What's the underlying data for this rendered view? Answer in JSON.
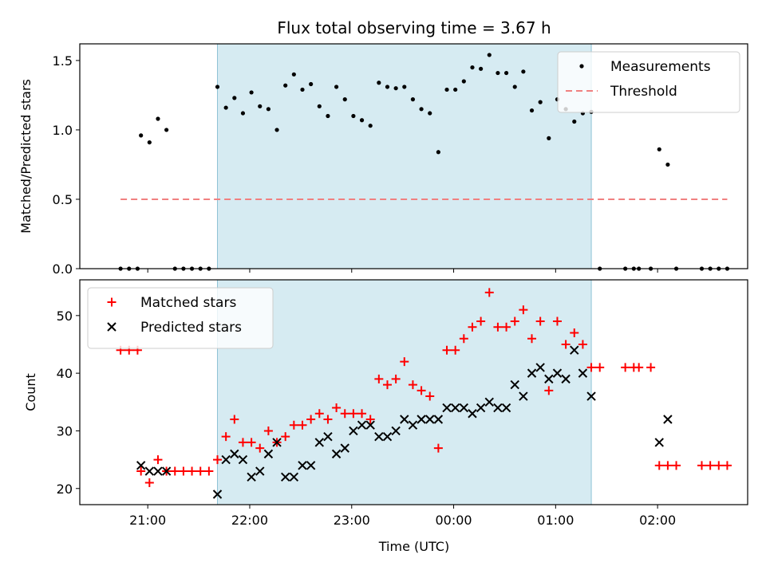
{
  "chart_data": {
    "type": "scatter",
    "title": "Flux total observing time = 3.67 h",
    "xlabel": "Time (UTC)",
    "x_ticks": [
      "21:00",
      "22:00",
      "23:00",
      "00:00",
      "01:00",
      "02:00"
    ],
    "shaded_region": {
      "start": "21:41",
      "end": "01:21",
      "color": "#add8e6"
    },
    "panels": [
      {
        "ylabel": "Matched/Predicted stars",
        "ylim": [
          0,
          1.62
        ],
        "y_ticks": [
          "0.0",
          "0.5",
          "1.0",
          "1.5"
        ],
        "legend": {
          "position": "top-right",
          "entries": [
            "Measurements",
            "Threshold"
          ]
        },
        "series": [
          {
            "name": "Measurements",
            "marker": "dot",
            "color": "#000000",
            "points": [
              [
                "20:44",
                0
              ],
              [
                "20:49",
                0
              ],
              [
                "20:54",
                0
              ],
              [
                "20:56",
                0.96
              ],
              [
                "21:01",
                0.91
              ],
              [
                "21:06",
                1.08
              ],
              [
                "21:11",
                1
              ],
              [
                "21:16",
                0
              ],
              [
                "21:21",
                0
              ],
              [
                "21:26",
                0
              ],
              [
                "21:31",
                0
              ],
              [
                "21:36",
                0
              ],
              [
                "21:41",
                1.31
              ],
              [
                "21:46",
                1.16
              ],
              [
                "21:51",
                1.23
              ],
              [
                "21:56",
                1.12
              ],
              [
                "22:01",
                1.27
              ],
              [
                "22:06",
                1.17
              ],
              [
                "22:11",
                1.15
              ],
              [
                "22:16",
                1
              ],
              [
                "22:21",
                1.32
              ],
              [
                "22:26",
                1.4
              ],
              [
                "22:31",
                1.29
              ],
              [
                "22:36",
                1.33
              ],
              [
                "22:41",
                1.17
              ],
              [
                "22:46",
                1.1
              ],
              [
                "22:51",
                1.31
              ],
              [
                "22:56",
                1.22
              ],
              [
                "23:01",
                1.1
              ],
              [
                "23:06",
                1.07
              ],
              [
                "23:11",
                1.03
              ],
              [
                "23:16",
                1.34
              ],
              [
                "23:21",
                1.31
              ],
              [
                "23:26",
                1.3
              ],
              [
                "23:31",
                1.31
              ],
              [
                "23:36",
                1.22
              ],
              [
                "23:41",
                1.15
              ],
              [
                "23:46",
                1.12
              ],
              [
                "23:51",
                0.84
              ],
              [
                "23:56",
                1.29
              ],
              [
                "00:01",
                1.29
              ],
              [
                "00:06",
                1.35
              ],
              [
                "00:11",
                1.45
              ],
              [
                "00:16",
                1.44
              ],
              [
                "00:21",
                1.54
              ],
              [
                "00:26",
                1.41
              ],
              [
                "00:31",
                1.41
              ],
              [
                "00:36",
                1.31
              ],
              [
                "00:41",
                1.42
              ],
              [
                "00:46",
                1.14
              ],
              [
                "00:51",
                1.2
              ],
              [
                "00:56",
                0.94
              ],
              [
                "01:01",
                1.22
              ],
              [
                "01:06",
                1.15
              ],
              [
                "01:11",
                1.06
              ],
              [
                "01:16",
                1.12
              ],
              [
                "01:21",
                1.13
              ],
              [
                "01:26",
                0
              ],
              [
                "01:41",
                0
              ],
              [
                "01:46",
                0
              ],
              [
                "01:49",
                0
              ],
              [
                "01:56",
                0
              ],
              [
                "02:01",
                0.86
              ],
              [
                "02:06",
                0.75
              ],
              [
                "02:11",
                0
              ],
              [
                "02:26",
                0
              ],
              [
                "02:31",
                0
              ],
              [
                "02:36",
                0
              ],
              [
                "02:41",
                0
              ]
            ]
          },
          {
            "name": "Threshold",
            "style": "dashed",
            "color": "#f08080",
            "y": 0.5,
            "x_range": [
              "20:44",
              "02:41"
            ]
          }
        ]
      },
      {
        "ylabel": "Count",
        "ylim": [
          17.2,
          56.2
        ],
        "y_ticks": [
          "20",
          "30",
          "40",
          "50"
        ],
        "legend": {
          "position": "top-left",
          "entries": [
            "Matched stars",
            "Predicted stars"
          ]
        },
        "series": [
          {
            "name": "Matched stars",
            "marker": "plus",
            "color": "#ff0000",
            "points": [
              [
                "20:44",
                44
              ],
              [
                "20:49",
                44
              ],
              [
                "20:54",
                44
              ],
              [
                "20:56",
                23
              ],
              [
                "21:01",
                21
              ],
              [
                "21:06",
                25
              ],
              [
                "21:11",
                23
              ],
              [
                "21:16",
                23
              ],
              [
                "21:21",
                23
              ],
              [
                "21:26",
                23
              ],
              [
                "21:31",
                23
              ],
              [
                "21:36",
                23
              ],
              [
                "21:41",
                25
              ],
              [
                "21:46",
                29
              ],
              [
                "21:51",
                32
              ],
              [
                "21:56",
                28
              ],
              [
                "22:01",
                28
              ],
              [
                "22:06",
                27
              ],
              [
                "22:11",
                30
              ],
              [
                "22:16",
                28
              ],
              [
                "22:21",
                29
              ],
              [
                "22:26",
                31
              ],
              [
                "22:31",
                31
              ],
              [
                "22:36",
                32
              ],
              [
                "22:41",
                33
              ],
              [
                "22:46",
                32
              ],
              [
                "22:51",
                34
              ],
              [
                "22:56",
                33
              ],
              [
                "23:01",
                33
              ],
              [
                "23:06",
                33
              ],
              [
                "23:11",
                32
              ],
              [
                "23:16",
                39
              ],
              [
                "23:21",
                38
              ],
              [
                "23:26",
                39
              ],
              [
                "23:31",
                42
              ],
              [
                "23:36",
                38
              ],
              [
                "23:41",
                37
              ],
              [
                "23:46",
                36
              ],
              [
                "23:51",
                27
              ],
              [
                "23:56",
                44
              ],
              [
                "00:01",
                44
              ],
              [
                "00:06",
                46
              ],
              [
                "00:11",
                48
              ],
              [
                "00:16",
                49
              ],
              [
                "00:21",
                54
              ],
              [
                "00:26",
                48
              ],
              [
                "00:31",
                48
              ],
              [
                "00:36",
                49
              ],
              [
                "00:41",
                51
              ],
              [
                "00:46",
                46
              ],
              [
                "00:51",
                49
              ],
              [
                "00:56",
                37
              ],
              [
                "01:01",
                49
              ],
              [
                "01:06",
                45
              ],
              [
                "01:11",
                47
              ],
              [
                "01:16",
                45
              ],
              [
                "01:21",
                41
              ],
              [
                "01:26",
                41
              ],
              [
                "01:41",
                41
              ],
              [
                "01:46",
                41
              ],
              [
                "01:49",
                41
              ],
              [
                "01:56",
                41
              ],
              [
                "02:01",
                24
              ],
              [
                "02:06",
                24
              ],
              [
                "02:11",
                24
              ],
              [
                "02:26",
                24
              ],
              [
                "02:31",
                24
              ],
              [
                "02:36",
                24
              ],
              [
                "02:41",
                24
              ]
            ]
          },
          {
            "name": "Predicted stars",
            "marker": "x",
            "color": "#000000",
            "points": [
              [
                "20:56",
                24
              ],
              [
                "21:01",
                23
              ],
              [
                "21:06",
                23
              ],
              [
                "21:11",
                23
              ],
              [
                "21:41",
                19
              ],
              [
                "21:46",
                25
              ],
              [
                "21:51",
                26
              ],
              [
                "21:56",
                25
              ],
              [
                "22:01",
                22
              ],
              [
                "22:06",
                23
              ],
              [
                "22:11",
                26
              ],
              [
                "22:16",
                28
              ],
              [
                "22:21",
                22
              ],
              [
                "22:26",
                22
              ],
              [
                "22:31",
                24
              ],
              [
                "22:36",
                24
              ],
              [
                "22:41",
                28
              ],
              [
                "22:46",
                29
              ],
              [
                "22:51",
                26
              ],
              [
                "22:56",
                27
              ],
              [
                "23:01",
                30
              ],
              [
                "23:06",
                31
              ],
              [
                "23:11",
                31
              ],
              [
                "23:16",
                29
              ],
              [
                "23:21",
                29
              ],
              [
                "23:26",
                30
              ],
              [
                "23:31",
                32
              ],
              [
                "23:36",
                31
              ],
              [
                "23:41",
                32
              ],
              [
                "23:46",
                32
              ],
              [
                "23:51",
                32
              ],
              [
                "23:56",
                34
              ],
              [
                "00:01",
                34
              ],
              [
                "00:06",
                34
              ],
              [
                "00:11",
                33
              ],
              [
                "00:16",
                34
              ],
              [
                "00:21",
                35
              ],
              [
                "00:26",
                34
              ],
              [
                "00:31",
                34
              ],
              [
                "00:36",
                38
              ],
              [
                "00:41",
                36
              ],
              [
                "00:46",
                40
              ],
              [
                "00:51",
                41
              ],
              [
                "00:56",
                39
              ],
              [
                "01:01",
                40
              ],
              [
                "01:06",
                39
              ],
              [
                "01:11",
                44
              ],
              [
                "01:16",
                40
              ],
              [
                "01:21",
                36
              ],
              [
                "02:01",
                28
              ],
              [
                "02:06",
                32
              ]
            ]
          }
        ]
      }
    ]
  }
}
